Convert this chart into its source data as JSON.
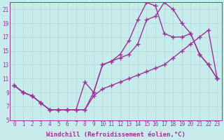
{
  "xlabel": "Windchill (Refroidissement éolien,°C)",
  "ylabel": "",
  "xlim": [
    -0.5,
    23.5
  ],
  "ylim": [
    5,
    22
  ],
  "xticks": [
    0,
    1,
    2,
    3,
    4,
    5,
    6,
    7,
    8,
    9,
    10,
    11,
    12,
    13,
    14,
    15,
    16,
    17,
    18,
    19,
    20,
    21,
    22,
    23
  ],
  "yticks": [
    5,
    7,
    9,
    11,
    13,
    15,
    17,
    19,
    21
  ],
  "background_color": "#c8ecec",
  "line_color": "#993399",
  "grid_color": "#b0d8d8",
  "line1_x": [
    0,
    1,
    2,
    3,
    4,
    5,
    6,
    7,
    8,
    9,
    10,
    11,
    12,
    13,
    14,
    15,
    16,
    17,
    18,
    19,
    20,
    21,
    22,
    23
  ],
  "line1_y": [
    10,
    9,
    8.5,
    7.5,
    6.5,
    6.5,
    6.5,
    6.5,
    6.5,
    8.5,
    9.5,
    10,
    10.5,
    11,
    11.5,
    12,
    12.5,
    13,
    14,
    15,
    16,
    17,
    18,
    11
  ],
  "line2_x": [
    0,
    1,
    2,
    3,
    4,
    5,
    6,
    7,
    8,
    9,
    10,
    11,
    12,
    13,
    14,
    15,
    16,
    17,
    18,
    19,
    20,
    21,
    22,
    23
  ],
  "line2_y": [
    10,
    9,
    8.5,
    7.5,
    6.5,
    6.5,
    6.5,
    6.5,
    6.5,
    9,
    13,
    13.5,
    14,
    14.5,
    16,
    19.5,
    20,
    22,
    21,
    19,
    17.5,
    14.5,
    13,
    11
  ],
  "line3_x": [
    0,
    1,
    2,
    3,
    4,
    5,
    6,
    7,
    8,
    9,
    10,
    11,
    12,
    13,
    14,
    15,
    16,
    17,
    18,
    19,
    20,
    21,
    22,
    23
  ],
  "line3_y": [
    10,
    9,
    8.5,
    7.5,
    6.5,
    6.5,
    6.5,
    6.5,
    10.5,
    9,
    13,
    13.5,
    14.5,
    16.5,
    19.5,
    22,
    21.5,
    17.5,
    17,
    17,
    17.5,
    14.5,
    13,
    11
  ],
  "marker_size": 4,
  "line_width": 1.0,
  "tick_fontsize": 5.5,
  "label_fontsize": 6.5
}
